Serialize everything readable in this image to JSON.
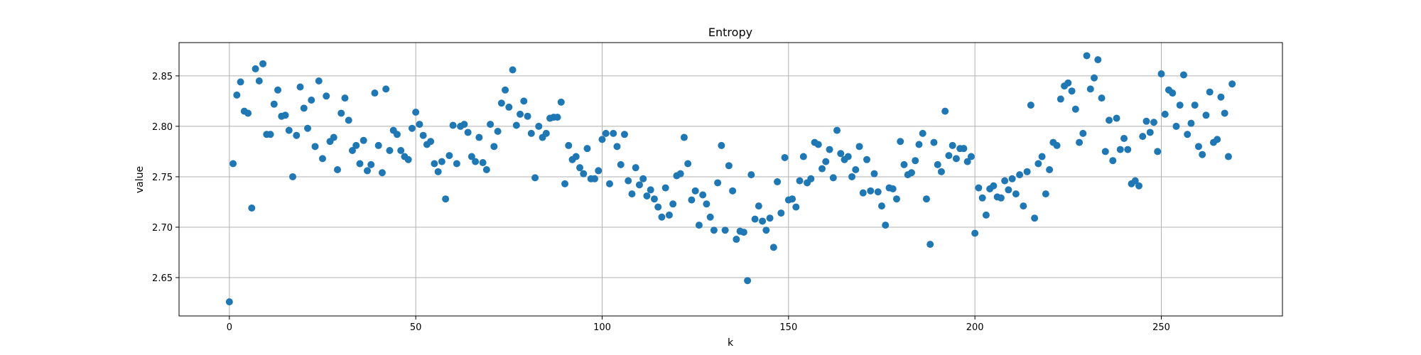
{
  "chart_data": {
    "type": "scatter",
    "title": "Entropy",
    "xlabel": "k",
    "ylabel": "value",
    "xlim": [
      -13.5,
      282.5
    ],
    "ylim": [
      2.612,
      2.883
    ],
    "xticks": [
      0,
      50,
      100,
      150,
      200,
      250
    ],
    "yticks": [
      2.65,
      2.7,
      2.75,
      2.8,
      2.85
    ],
    "ytick_labels": [
      "2.65",
      "2.70",
      "2.75",
      "2.80",
      "2.85"
    ],
    "grid": true,
    "marker_color": "#1f77b4",
    "x": [
      0,
      1,
      2,
      3,
      4,
      5,
      6,
      7,
      8,
      9,
      10,
      11,
      12,
      13,
      14,
      15,
      16,
      17,
      18,
      19,
      20,
      21,
      22,
      23,
      24,
      25,
      26,
      27,
      28,
      29,
      30,
      31,
      32,
      33,
      34,
      35,
      36,
      37,
      38,
      39,
      40,
      41,
      42,
      43,
      44,
      45,
      46,
      47,
      48,
      49,
      50,
      51,
      52,
      53,
      54,
      55,
      56,
      57,
      58,
      59,
      60,
      61,
      62,
      63,
      64,
      65,
      66,
      67,
      68,
      69,
      70,
      71,
      72,
      73,
      74,
      75,
      76,
      77,
      78,
      79,
      80,
      81,
      82,
      83,
      84,
      85,
      86,
      87,
      88,
      89,
      90,
      91,
      92,
      93,
      94,
      95,
      96,
      97,
      98,
      99,
      100,
      101,
      102,
      103,
      104,
      105,
      106,
      107,
      108,
      109,
      110,
      111,
      112,
      113,
      114,
      115,
      116,
      117,
      118,
      119,
      120,
      121,
      122,
      123,
      124,
      125,
      126,
      127,
      128,
      129,
      130,
      131,
      132,
      133,
      134,
      135,
      136,
      137,
      138,
      139,
      140,
      141,
      142,
      143,
      144,
      145,
      146,
      147,
      148,
      149,
      150,
      151,
      152,
      153,
      154,
      155,
      156,
      157,
      158,
      159,
      160,
      161,
      162,
      163,
      164,
      165,
      166,
      167,
      168,
      169,
      170,
      171,
      172,
      173,
      174,
      175,
      176,
      177,
      178,
      179,
      180,
      181,
      182,
      183,
      184,
      185,
      186,
      187,
      188,
      189,
      190,
      191,
      192,
      193,
      194,
      195,
      196,
      197,
      198,
      199,
      200,
      201,
      202,
      203,
      204,
      205,
      206,
      207,
      208,
      209,
      210,
      211,
      212,
      213,
      214,
      215,
      216,
      217,
      218,
      219,
      220,
      221,
      222,
      223,
      224,
      225,
      226,
      227,
      228,
      229,
      230,
      231,
      232,
      233,
      234,
      235,
      236,
      237,
      238,
      239,
      240,
      241,
      242,
      243,
      244,
      245,
      246,
      247,
      248,
      249,
      250,
      251,
      252,
      253,
      254,
      255,
      256,
      257,
      258,
      259,
      260,
      261,
      262,
      263,
      264,
      265,
      266,
      267,
      268,
      269
    ],
    "y": [
      2.626,
      2.763,
      2.831,
      2.844,
      2.815,
      2.813,
      2.719,
      2.857,
      2.845,
      2.862,
      2.792,
      2.792,
      2.822,
      2.836,
      2.81,
      2.811,
      2.796,
      2.75,
      2.791,
      2.839,
      2.818,
      2.798,
      2.826,
      2.78,
      2.845,
      2.768,
      2.83,
      2.785,
      2.789,
      2.757,
      2.813,
      2.828,
      2.806,
      2.776,
      2.781,
      2.763,
      2.786,
      2.756,
      2.762,
      2.833,
      2.781,
      2.754,
      2.837,
      2.776,
      2.796,
      2.792,
      2.776,
      2.77,
      2.767,
      2.798,
      2.814,
      2.802,
      2.791,
      2.782,
      2.785,
      2.763,
      2.755,
      2.765,
      2.728,
      2.771,
      2.801,
      2.763,
      2.8,
      2.802,
      2.794,
      2.77,
      2.765,
      2.789,
      2.764,
      2.757,
      2.802,
      2.78,
      2.795,
      2.823,
      2.836,
      2.819,
      2.856,
      2.801,
      2.812,
      2.825,
      2.81,
      2.793,
      2.749,
      2.8,
      2.789,
      2.793,
      2.808,
      2.809,
      2.809,
      2.824,
      2.743,
      2.781,
      2.767,
      2.77,
      2.759,
      2.753,
      2.778,
      2.748,
      2.748,
      2.756,
      2.787,
      2.793,
      2.743,
      2.793,
      2.78,
      2.762,
      2.792,
      2.746,
      2.733,
      2.759,
      2.742,
      2.748,
      2.731,
      2.737,
      2.728,
      2.72,
      2.71,
      2.739,
      2.712,
      2.723,
      2.751,
      2.753,
      2.789,
      2.763,
      2.727,
      2.736,
      2.702,
      2.732,
      2.723,
      2.71,
      2.697,
      2.744,
      2.781,
      2.697,
      2.761,
      2.736,
      2.688,
      2.696,
      2.695,
      2.647,
      2.752,
      2.708,
      2.721,
      2.706,
      2.697,
      2.709,
      2.68,
      2.745,
      2.714,
      2.769,
      2.727,
      2.728,
      2.72,
      2.746,
      2.77,
      2.744,
      2.748,
      2.784,
      2.782,
      2.758,
      2.765,
      2.777,
      2.749,
      2.796,
      2.773,
      2.767,
      2.77,
      2.75,
      2.757,
      2.78,
      2.734,
      2.767,
      2.736,
      2.753,
      2.735,
      2.721,
      2.702,
      2.739,
      2.738,
      2.728,
      2.785,
      2.762,
      2.752,
      2.754,
      2.766,
      2.782,
      2.793,
      2.728,
      2.683,
      2.784,
      2.762,
      2.755,
      2.815,
      2.771,
      2.781,
      2.768,
      2.778,
      2.778,
      2.765,
      2.77,
      2.694,
      2.739,
      2.729,
      2.712,
      2.738,
      2.741,
      2.73,
      2.729,
      2.746,
      2.737,
      2.748,
      2.733,
      2.752,
      2.721,
      2.755,
      2.821,
      2.709,
      2.763,
      2.77,
      2.733,
      2.757,
      2.784,
      2.781,
      2.827,
      2.84,
      2.843,
      2.835,
      2.817,
      2.784,
      2.793,
      2.87,
      2.837,
      2.848,
      2.866,
      2.828,
      2.775,
      2.806,
      2.766,
      2.808,
      2.777,
      2.788,
      2.777,
      2.743,
      2.746,
      2.741,
      2.79,
      2.805,
      2.794,
      2.804,
      2.775,
      2.852,
      2.812,
      2.836,
      2.833,
      2.8,
      2.821,
      2.851,
      2.792,
      2.803,
      2.821,
      2.78,
      2.772,
      2.811,
      2.834,
      2.784,
      2.787,
      2.829,
      2.813,
      2.77,
      2.842
    ]
  }
}
